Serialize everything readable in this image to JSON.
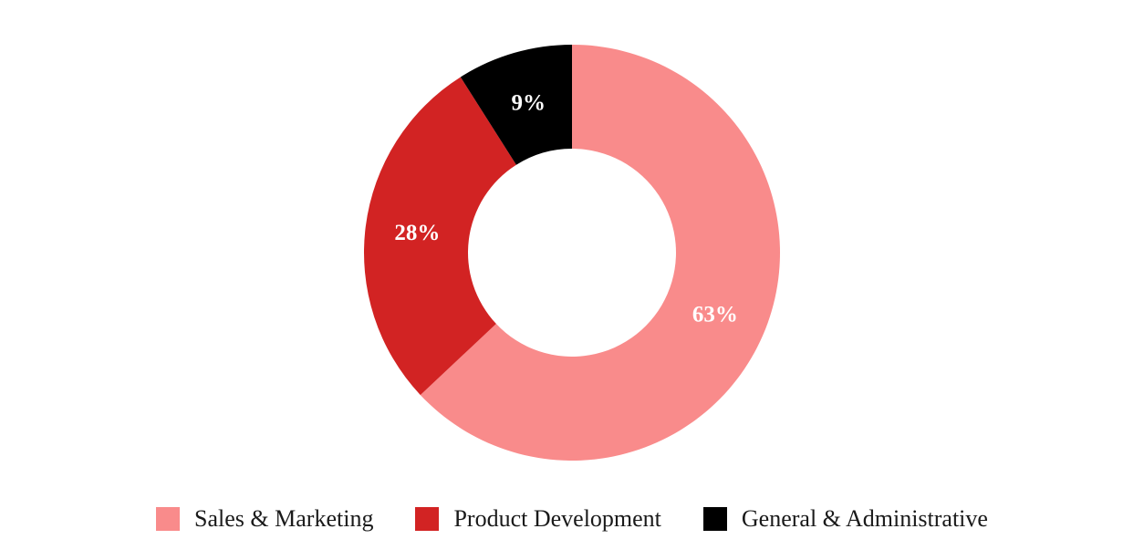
{
  "chart_data": {
    "type": "pie",
    "variant": "donut",
    "categories": [
      "Sales & Marketing",
      "Product Development",
      "General & Administrative"
    ],
    "values": [
      63,
      28,
      9
    ],
    "value_labels": [
      "63%",
      "28%",
      "9%"
    ],
    "colors": [
      "#f98b8b",
      "#d22323",
      "#000000"
    ],
    "legend_position": "bottom",
    "start_angle_deg": 0,
    "direction": "clockwise"
  },
  "legend": {
    "items": [
      {
        "label": "Sales & Marketing",
        "color": "#f98b8b"
      },
      {
        "label": "Product Development",
        "color": "#d22323"
      },
      {
        "label": "General & Administrative",
        "color": "#000000"
      }
    ]
  }
}
